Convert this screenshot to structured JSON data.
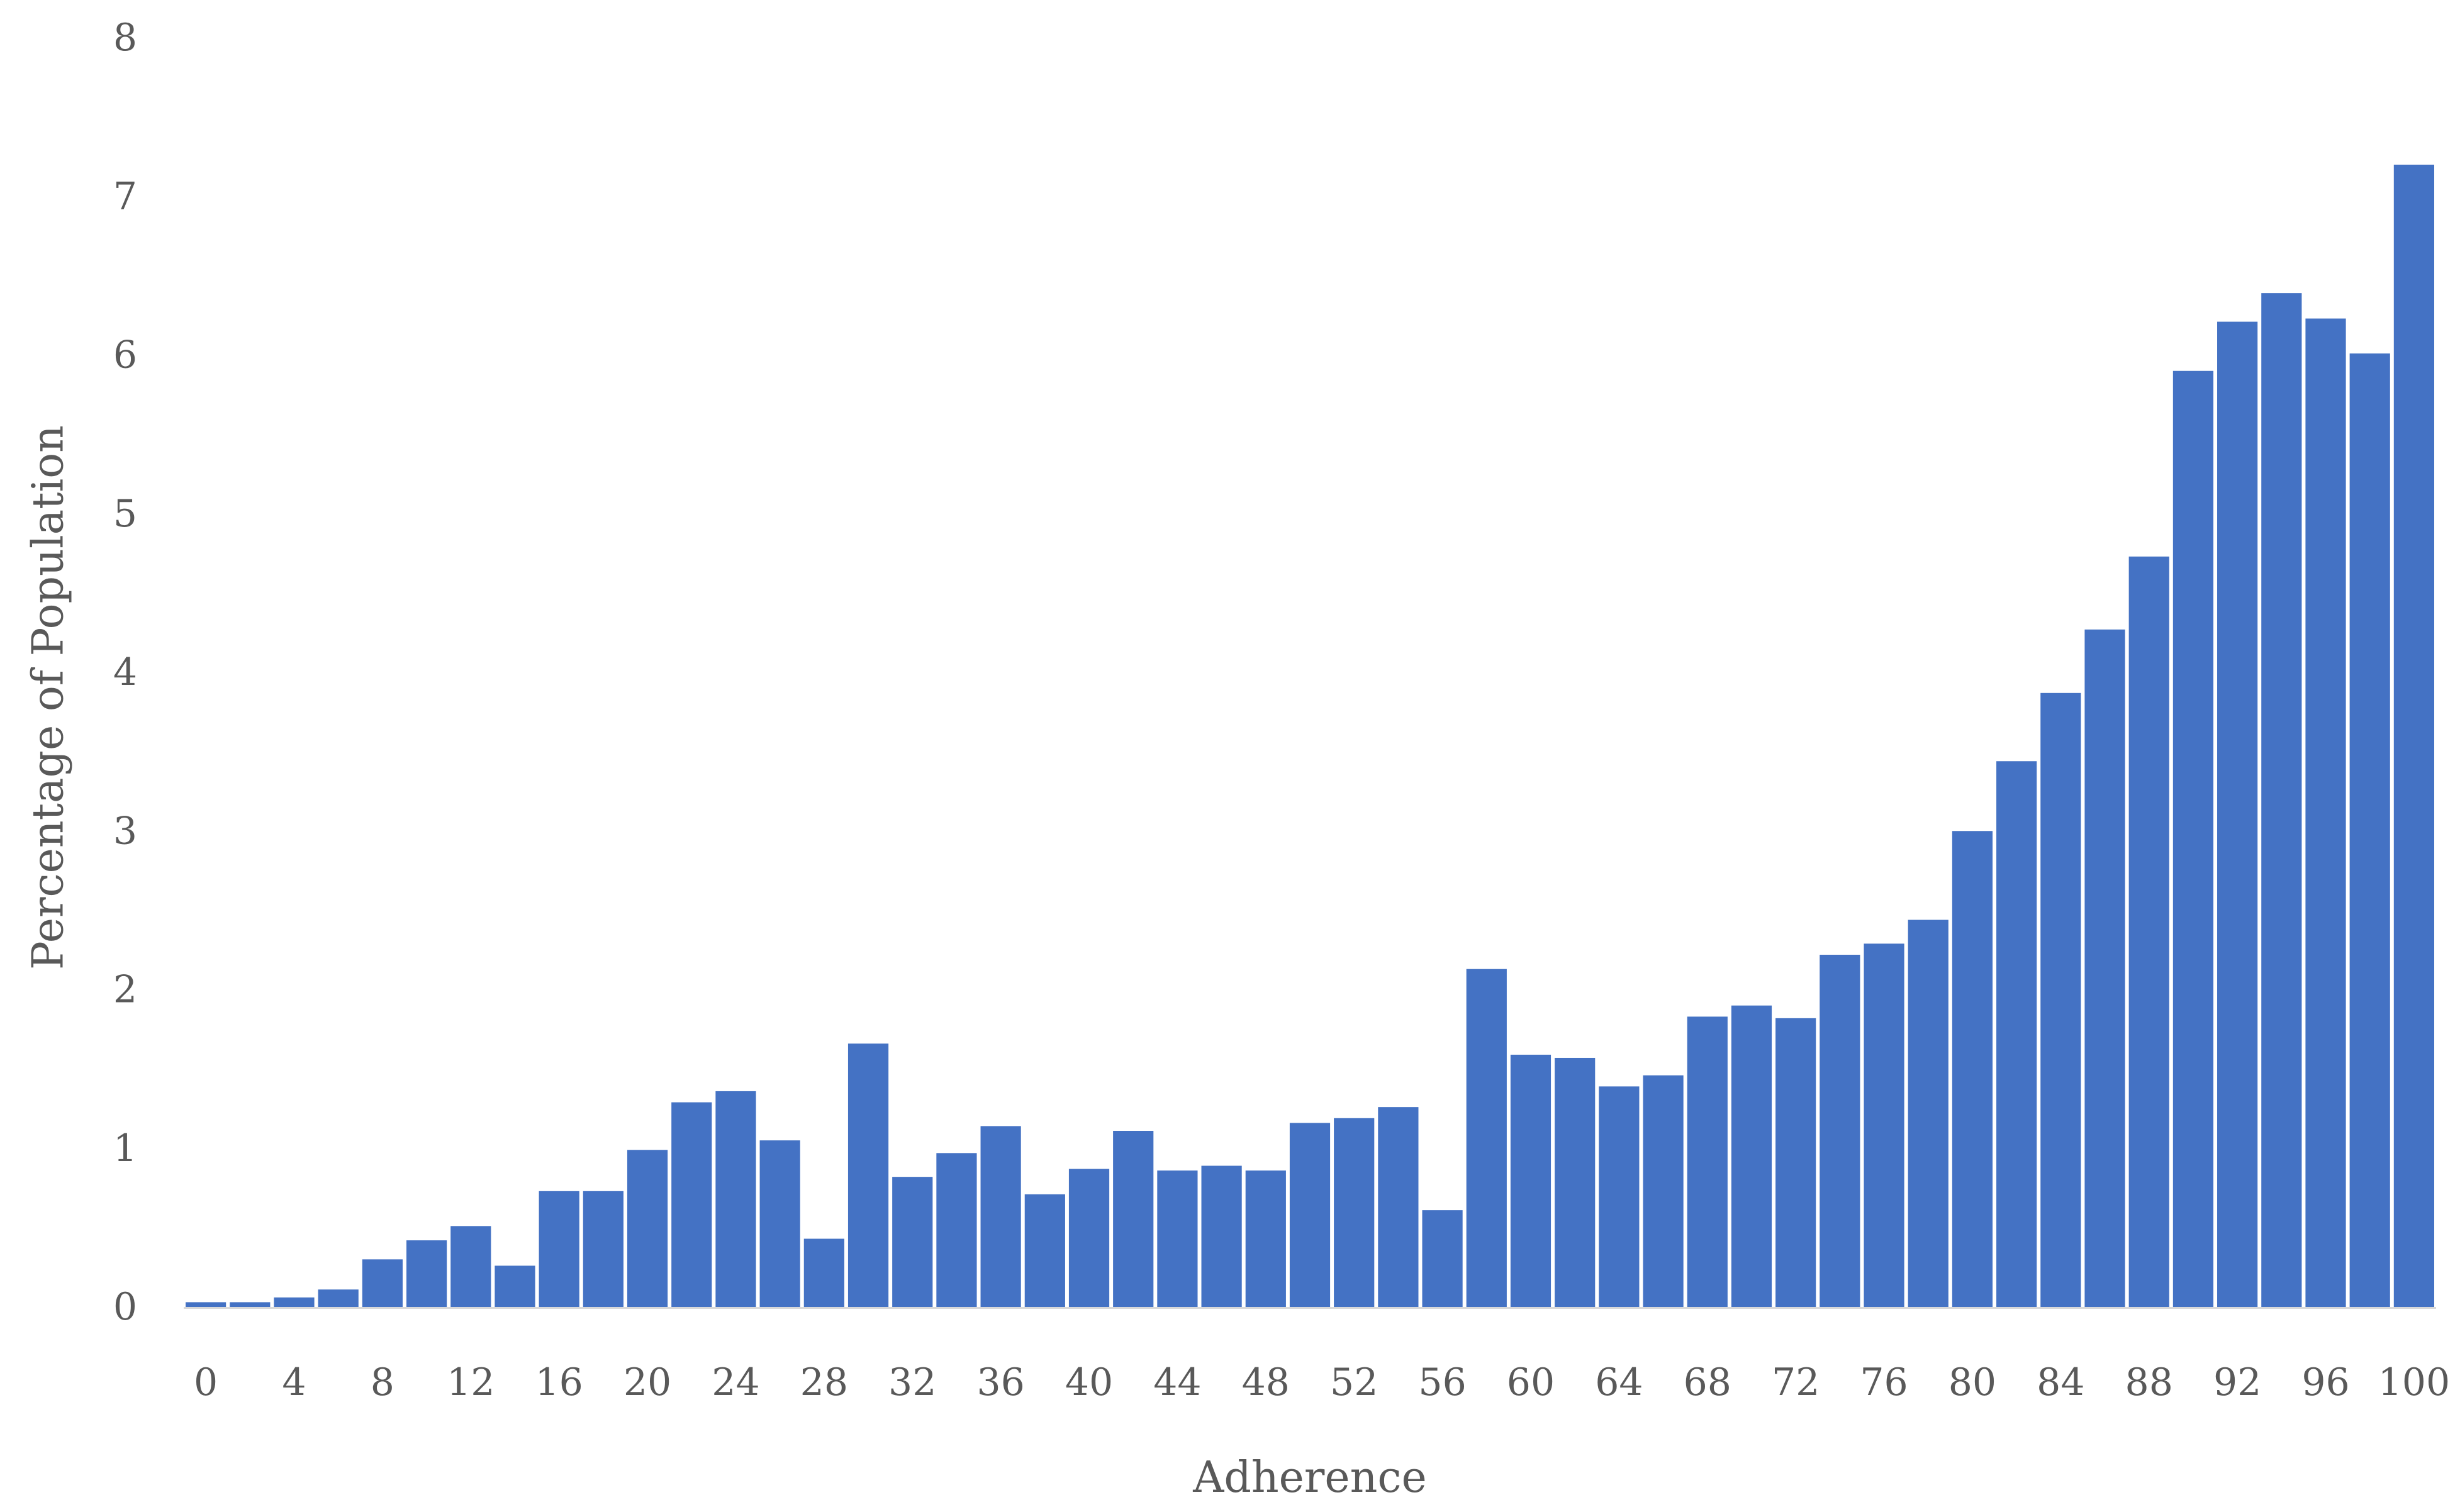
{
  "chart_data": {
    "type": "bar",
    "title": "",
    "xlabel": "Adherence",
    "ylabel": "Percentage of Population",
    "ylim": [
      0,
      8
    ],
    "yticks": [
      0,
      1,
      2,
      3,
      4,
      5,
      6,
      7,
      8
    ],
    "grid": false,
    "legend": "none",
    "bar_color": "#4472C4",
    "categories": [
      0,
      2,
      4,
      6,
      8,
      10,
      12,
      14,
      16,
      18,
      20,
      22,
      24,
      26,
      28,
      30,
      32,
      34,
      36,
      38,
      40,
      42,
      44,
      46,
      48,
      50,
      52,
      54,
      56,
      58,
      60,
      62,
      64,
      66,
      68,
      70,
      72,
      74,
      76,
      78,
      80,
      82,
      84,
      86,
      88,
      90,
      92,
      94,
      96,
      98,
      100
    ],
    "xtick_labels": [
      "0",
      "4",
      "8",
      "12",
      "16",
      "20",
      "24",
      "28",
      "32",
      "36",
      "40",
      "44",
      "48",
      "52",
      "56",
      "60",
      "64",
      "68",
      "72",
      "76",
      "80",
      "84",
      "88",
      "92",
      "96",
      "100"
    ],
    "values": [
      0.03,
      0.03,
      0.06,
      0.11,
      0.3,
      0.42,
      0.51,
      0.26,
      0.73,
      0.73,
      0.99,
      1.29,
      1.36,
      1.05,
      0.43,
      1.66,
      0.82,
      0.97,
      1.14,
      0.71,
      0.87,
      1.11,
      0.86,
      0.89,
      0.86,
      1.16,
      1.19,
      1.26,
      0.61,
      2.13,
      1.59,
      1.57,
      1.39,
      1.46,
      1.83,
      1.9,
      1.82,
      2.22,
      2.29,
      2.44,
      3.0,
      3.44,
      3.87,
      4.27,
      4.73,
      5.9,
      6.21,
      6.39,
      6.23,
      6.01,
      7.2
    ]
  }
}
